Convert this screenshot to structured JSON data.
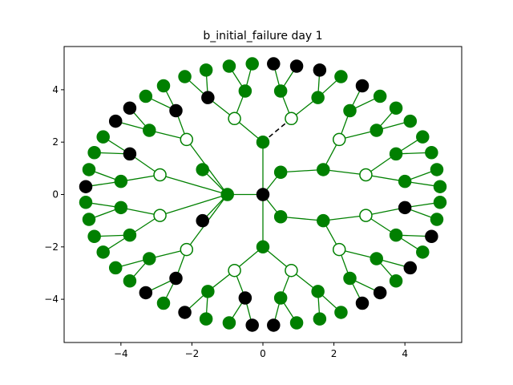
{
  "figure": {
    "title": "b_initial_failure day 1"
  },
  "colors": {
    "edge": "#008000",
    "failed_edge": "#000000",
    "node_green": "#008000",
    "node_black": "#000000",
    "node_hollow_fill": "#ffffff",
    "node_hollow_stroke": "#008000"
  },
  "chart_data": {
    "type": "scatter",
    "title": "b_initial_failure day 1",
    "xlabel": "",
    "ylabel": "",
    "xlim": [
      -5.6,
      5.6
    ],
    "ylim": [
      -5.65,
      5.65
    ],
    "xticks": [
      -4,
      -2,
      0,
      2,
      4
    ],
    "yticks": [
      -4,
      -2,
      0,
      2,
      4
    ],
    "grid": false,
    "nodes": [
      {
        "id": "c",
        "x": 0.0,
        "y": 0.0,
        "state": "black"
      },
      {
        "id": "m1",
        "x": 0.0,
        "y": 2.0,
        "state": "green"
      },
      {
        "id": "m2",
        "x": -1.0,
        "y": 0.0,
        "state": "green"
      },
      {
        "id": "m3",
        "x": 0.5,
        "y": 0.85,
        "state": "green"
      },
      {
        "id": "m4",
        "x": 0.5,
        "y": -0.85,
        "state": "green"
      },
      {
        "id": "m5",
        "x": 0.0,
        "y": -2.0,
        "state": "green"
      },
      {
        "id": "s1",
        "x": -0.8,
        "y": 2.9,
        "state": "hollow"
      },
      {
        "id": "s2",
        "x": 0.8,
        "y": 2.9,
        "state": "hollow"
      },
      {
        "id": "s3",
        "x": -2.15,
        "y": 2.1,
        "state": "hollow"
      },
      {
        "id": "s4",
        "x": -1.7,
        "y": 0.95,
        "state": "green"
      },
      {
        "id": "s5",
        "x": -2.9,
        "y": 0.75,
        "state": "hollow"
      },
      {
        "id": "s6",
        "x": -2.9,
        "y": -0.8,
        "state": "hollow"
      },
      {
        "id": "s7",
        "x": -1.7,
        "y": -1.0,
        "state": "black"
      },
      {
        "id": "s8",
        "x": -2.15,
        "y": -2.1,
        "state": "hollow"
      },
      {
        "id": "s9",
        "x": 1.7,
        "y": 0.95,
        "state": "green"
      },
      {
        "id": "s10",
        "x": 2.15,
        "y": 2.1,
        "state": "hollow"
      },
      {
        "id": "s11",
        "x": 2.9,
        "y": 0.75,
        "state": "hollow"
      },
      {
        "id": "s12",
        "x": 1.7,
        "y": -1.0,
        "state": "green"
      },
      {
        "id": "s13",
        "x": 2.9,
        "y": -0.8,
        "state": "hollow"
      },
      {
        "id": "s14",
        "x": 2.15,
        "y": -2.1,
        "state": "hollow"
      },
      {
        "id": "s15",
        "x": -0.8,
        "y": -2.9,
        "state": "hollow"
      },
      {
        "id": "s16",
        "x": 0.8,
        "y": -2.9,
        "state": "hollow"
      },
      {
        "id": "t1",
        "x": -0.5,
        "y": 3.95,
        "state": "green"
      },
      {
        "id": "t2",
        "x": -1.55,
        "y": 3.7,
        "state": "black"
      },
      {
        "id": "t3",
        "x": 0.5,
        "y": 3.95,
        "state": "green"
      },
      {
        "id": "t4",
        "x": 1.55,
        "y": 3.7,
        "state": "green"
      },
      {
        "id": "t5",
        "x": -2.45,
        "y": 3.2,
        "state": "black"
      },
      {
        "id": "t6",
        "x": -3.2,
        "y": 2.45,
        "state": "green"
      },
      {
        "id": "t7",
        "x": -3.75,
        "y": 1.55,
        "state": "black"
      },
      {
        "id": "t8",
        "x": -4.0,
        "y": 0.5,
        "state": "green"
      },
      {
        "id": "t9",
        "x": -4.0,
        "y": -0.5,
        "state": "green"
      },
      {
        "id": "t10",
        "x": -3.75,
        "y": -1.55,
        "state": "green"
      },
      {
        "id": "t11",
        "x": -3.2,
        "y": -2.45,
        "state": "green"
      },
      {
        "id": "t12",
        "x": -2.45,
        "y": -3.2,
        "state": "black"
      },
      {
        "id": "t13",
        "x": 2.45,
        "y": 3.2,
        "state": "green"
      },
      {
        "id": "t14",
        "x": 3.2,
        "y": 2.45,
        "state": "green"
      },
      {
        "id": "t15",
        "x": 3.75,
        "y": 1.55,
        "state": "green"
      },
      {
        "id": "t16",
        "x": 4.0,
        "y": 0.5,
        "state": "green"
      },
      {
        "id": "t17",
        "x": 4.0,
        "y": -0.5,
        "state": "black"
      },
      {
        "id": "t18",
        "x": 3.75,
        "y": -1.55,
        "state": "green"
      },
      {
        "id": "t19",
        "x": 3.2,
        "y": -2.45,
        "state": "green"
      },
      {
        "id": "t20",
        "x": 2.45,
        "y": -3.2,
        "state": "green"
      },
      {
        "id": "t21",
        "x": -0.5,
        "y": -3.95,
        "state": "black"
      },
      {
        "id": "t22",
        "x": -1.55,
        "y": -3.7,
        "state": "green"
      },
      {
        "id": "t23",
        "x": 0.5,
        "y": -3.95,
        "state": "green"
      },
      {
        "id": "t24",
        "x": 1.55,
        "y": -3.7,
        "state": "green"
      },
      {
        "id": "l1",
        "x": -0.3,
        "y": 4.99,
        "state": "green"
      },
      {
        "id": "l2",
        "x": -0.95,
        "y": 4.9,
        "state": "green"
      },
      {
        "id": "l3",
        "x": -1.6,
        "y": 4.75,
        "state": "green"
      },
      {
        "id": "l4",
        "x": -2.2,
        "y": 4.5,
        "state": "green"
      },
      {
        "id": "l5",
        "x": 0.3,
        "y": 4.99,
        "state": "black"
      },
      {
        "id": "l6",
        "x": 0.95,
        "y": 4.9,
        "state": "black"
      },
      {
        "id": "l7",
        "x": 1.6,
        "y": 4.75,
        "state": "black"
      },
      {
        "id": "l8",
        "x": 2.2,
        "y": 4.5,
        "state": "green"
      },
      {
        "id": "l9",
        "x": -2.8,
        "y": 4.15,
        "state": "green"
      },
      {
        "id": "l10",
        "x": -3.3,
        "y": 3.75,
        "state": "green"
      },
      {
        "id": "l11",
        "x": -3.75,
        "y": 3.3,
        "state": "black"
      },
      {
        "id": "l12",
        "x": -4.15,
        "y": 2.8,
        "state": "black"
      },
      {
        "id": "l13",
        "x": -4.5,
        "y": 2.2,
        "state": "green"
      },
      {
        "id": "l14",
        "x": -4.75,
        "y": 1.6,
        "state": "green"
      },
      {
        "id": "l15",
        "x": -4.9,
        "y": 0.95,
        "state": "green"
      },
      {
        "id": "l16",
        "x": -4.99,
        "y": 0.3,
        "state": "black"
      },
      {
        "id": "l17",
        "x": -4.99,
        "y": -0.3,
        "state": "green"
      },
      {
        "id": "l18",
        "x": -4.9,
        "y": -0.95,
        "state": "green"
      },
      {
        "id": "l19",
        "x": -4.75,
        "y": -1.6,
        "state": "green"
      },
      {
        "id": "l20",
        "x": -4.5,
        "y": -2.2,
        "state": "green"
      },
      {
        "id": "l21",
        "x": -4.15,
        "y": -2.8,
        "state": "green"
      },
      {
        "id": "l22",
        "x": -3.75,
        "y": -3.3,
        "state": "green"
      },
      {
        "id": "l23",
        "x": -3.3,
        "y": -3.75,
        "state": "black"
      },
      {
        "id": "l24",
        "x": -2.8,
        "y": -4.15,
        "state": "green"
      },
      {
        "id": "l25",
        "x": 2.8,
        "y": 4.15,
        "state": "black"
      },
      {
        "id": "l26",
        "x": 3.3,
        "y": 3.75,
        "state": "green"
      },
      {
        "id": "l27",
        "x": 3.75,
        "y": 3.3,
        "state": "green"
      },
      {
        "id": "l28",
        "x": 4.15,
        "y": 2.8,
        "state": "green"
      },
      {
        "id": "l29",
        "x": 4.5,
        "y": 2.2,
        "state": "green"
      },
      {
        "id": "l30",
        "x": 4.75,
        "y": 1.6,
        "state": "green"
      },
      {
        "id": "l31",
        "x": 4.9,
        "y": 0.95,
        "state": "green"
      },
      {
        "id": "l32",
        "x": 4.99,
        "y": 0.3,
        "state": "green"
      },
      {
        "id": "l33",
        "x": 4.99,
        "y": -0.3,
        "state": "green"
      },
      {
        "id": "l34",
        "x": 4.9,
        "y": -0.95,
        "state": "green"
      },
      {
        "id": "l35",
        "x": 4.75,
        "y": -1.6,
        "state": "black"
      },
      {
        "id": "l36",
        "x": 4.5,
        "y": -2.2,
        "state": "green"
      },
      {
        "id": "l37",
        "x": 4.15,
        "y": -2.8,
        "state": "black"
      },
      {
        "id": "l38",
        "x": 3.75,
        "y": -3.3,
        "state": "green"
      },
      {
        "id": "l39",
        "x": 3.3,
        "y": -3.75,
        "state": "black"
      },
      {
        "id": "l40",
        "x": 2.8,
        "y": -4.15,
        "state": "black"
      },
      {
        "id": "l41",
        "x": -2.2,
        "y": -4.5,
        "state": "black"
      },
      {
        "id": "l42",
        "x": -1.6,
        "y": -4.75,
        "state": "green"
      },
      {
        "id": "l43",
        "x": -0.95,
        "y": -4.9,
        "state": "green"
      },
      {
        "id": "l44",
        "x": -0.3,
        "y": -4.99,
        "state": "black"
      },
      {
        "id": "l45",
        "x": 0.3,
        "y": -4.99,
        "state": "black"
      },
      {
        "id": "l46",
        "x": 0.95,
        "y": -4.9,
        "state": "green"
      },
      {
        "id": "l47",
        "x": 1.6,
        "y": -4.75,
        "state": "green"
      },
      {
        "id": "l48",
        "x": 2.2,
        "y": -4.5,
        "state": "green"
      }
    ],
    "edges": [
      [
        "c",
        "m1"
      ],
      [
        "c",
        "m2"
      ],
      [
        "c",
        "m3"
      ],
      [
        "c",
        "m4"
      ],
      [
        "c",
        "m5"
      ],
      [
        "m1",
        "s1"
      ],
      [
        "m1",
        "s2",
        "failed"
      ],
      [
        "m2",
        "s3"
      ],
      [
        "m2",
        "s4"
      ],
      [
        "m2",
        "s5"
      ],
      [
        "m2",
        "s6"
      ],
      [
        "m2",
        "s7"
      ],
      [
        "m2",
        "s8"
      ],
      [
        "m3",
        "s9"
      ],
      [
        "m4",
        "s12"
      ],
      [
        "s9",
        "s10"
      ],
      [
        "s9",
        "s11"
      ],
      [
        "s12",
        "s13"
      ],
      [
        "s12",
        "s14"
      ],
      [
        "m5",
        "s15"
      ],
      [
        "m5",
        "s16"
      ],
      [
        "s1",
        "t1"
      ],
      [
        "s1",
        "t2"
      ],
      [
        "s2",
        "t3"
      ],
      [
        "s2",
        "t4"
      ],
      [
        "s3",
        "t5"
      ],
      [
        "s3",
        "t6"
      ],
      [
        "s5",
        "t7"
      ],
      [
        "s5",
        "t8"
      ],
      [
        "s6",
        "t9"
      ],
      [
        "s6",
        "t10"
      ],
      [
        "s8",
        "t11"
      ],
      [
        "s8",
        "t12"
      ],
      [
        "s10",
        "t13"
      ],
      [
        "s10",
        "t14"
      ],
      [
        "s11",
        "t15"
      ],
      [
        "s11",
        "t16"
      ],
      [
        "s13",
        "t17"
      ],
      [
        "s13",
        "t18"
      ],
      [
        "s14",
        "t19"
      ],
      [
        "s14",
        "t20"
      ],
      [
        "s15",
        "t21"
      ],
      [
        "s15",
        "t22"
      ],
      [
        "s16",
        "t23"
      ],
      [
        "s16",
        "t24"
      ],
      [
        "t1",
        "l1"
      ],
      [
        "t1",
        "l2"
      ],
      [
        "t2",
        "l3"
      ],
      [
        "t2",
        "l4"
      ],
      [
        "t3",
        "l5"
      ],
      [
        "t3",
        "l6"
      ],
      [
        "t4",
        "l7"
      ],
      [
        "t4",
        "l8"
      ],
      [
        "t5",
        "l9"
      ],
      [
        "t5",
        "l10"
      ],
      [
        "t6",
        "l11"
      ],
      [
        "t6",
        "l12"
      ],
      [
        "t7",
        "l13"
      ],
      [
        "t7",
        "l14"
      ],
      [
        "t8",
        "l15"
      ],
      [
        "t8",
        "l16"
      ],
      [
        "t9",
        "l17"
      ],
      [
        "t9",
        "l18"
      ],
      [
        "t10",
        "l19"
      ],
      [
        "t10",
        "l20"
      ],
      [
        "t11",
        "l21"
      ],
      [
        "t11",
        "l22"
      ],
      [
        "t12",
        "l23"
      ],
      [
        "t12",
        "l24"
      ],
      [
        "t13",
        "l25"
      ],
      [
        "t13",
        "l26"
      ],
      [
        "t14",
        "l27"
      ],
      [
        "t14",
        "l28"
      ],
      [
        "t15",
        "l29"
      ],
      [
        "t15",
        "l30"
      ],
      [
        "t16",
        "l31"
      ],
      [
        "t16",
        "l32"
      ],
      [
        "t17",
        "l33"
      ],
      [
        "t17",
        "l34"
      ],
      [
        "t18",
        "l35"
      ],
      [
        "t18",
        "l36"
      ],
      [
        "t19",
        "l37"
      ],
      [
        "t19",
        "l38"
      ],
      [
        "t20",
        "l39"
      ],
      [
        "t20",
        "l40"
      ],
      [
        "t22",
        "l41"
      ],
      [
        "t22",
        "l42"
      ],
      [
        "t21",
        "l43"
      ],
      [
        "t21",
        "l44"
      ],
      [
        "t23",
        "l45"
      ],
      [
        "t23",
        "l46"
      ],
      [
        "t24",
        "l47"
      ],
      [
        "t24",
        "l48"
      ]
    ]
  }
}
